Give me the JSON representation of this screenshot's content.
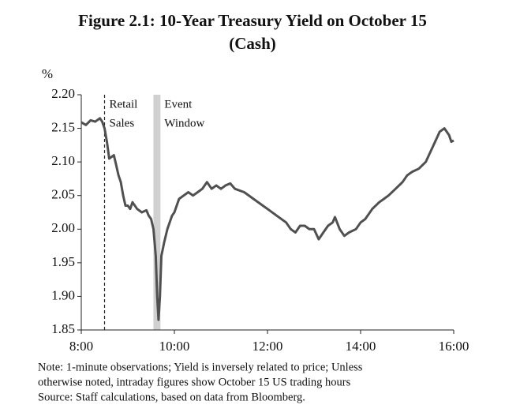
{
  "chart_data": {
    "type": "line",
    "title": [
      "Figure 2.1: 10-Year Treasury Yield on October 15",
      "(Cash)"
    ],
    "ylabel": "%",
    "color": "#505050",
    "xlim": [
      8,
      16
    ],
    "xticks": [
      {
        "value": 8,
        "label": "8:00"
      },
      {
        "value": 10,
        "label": "10:00"
      },
      {
        "value": 12,
        "label": "12:00"
      },
      {
        "value": 14,
        "label": "14:00"
      },
      {
        "value": 16,
        "label": "16:00"
      }
    ],
    "ylim": [
      1.85,
      2.2
    ],
    "yticks": [
      1.85,
      {
        "value": 1.9,
        "label": "1.90"
      },
      1.95,
      {
        "value": 2.0,
        "label": "2.00"
      },
      2.05,
      {
        "value": 2.1,
        "label": "2.10"
      },
      2.15,
      {
        "value": 2.2,
        "label": "2.20"
      }
    ],
    "event_line_x": 8.5,
    "event_window_x": [
      9.55,
      9.7
    ],
    "annotations": [
      [
        "Retail",
        "Sales"
      ],
      [
        "Event",
        "Window"
      ]
    ],
    "x": [
      8,
      8.1,
      8.2,
      8.3,
      8.4,
      8.45,
      8.5,
      8.55,
      8.6,
      8.7,
      8.75,
      8.8,
      8.85,
      8.9,
      8.95,
      9.0,
      9.05,
      9.1,
      9.2,
      9.3,
      9.4,
      9.45,
      9.5,
      9.55,
      9.6,
      9.63,
      9.66,
      9.69,
      9.72,
      9.78,
      9.85,
      9.95,
      10.0,
      10.1,
      10.2,
      10.3,
      10.4,
      10.5,
      10.6,
      10.7,
      10.8,
      10.9,
      11.0,
      11.1,
      11.2,
      11.3,
      11.5,
      11.7,
      11.9,
      12.0,
      12.2,
      12.4,
      12.5,
      12.6,
      12.7,
      12.8,
      12.9,
      13.0,
      13.1,
      13.2,
      13.3,
      13.4,
      13.45,
      13.55,
      13.65,
      13.75,
      13.9,
      14.0,
      14.1,
      14.25,
      14.4,
      14.5,
      14.6,
      14.75,
      14.9,
      15.0,
      15.1,
      15.25,
      15.4,
      15.5,
      15.6,
      15.7,
      15.8,
      15.9,
      15.95,
      16.0
    ],
    "values": [
      2.159,
      2.155,
      2.162,
      2.16,
      2.165,
      2.16,
      2.15,
      2.13,
      2.105,
      2.11,
      2.095,
      2.08,
      2.07,
      2.05,
      2.035,
      2.035,
      2.03,
      2.04,
      2.03,
      2.025,
      2.028,
      2.02,
      2.015,
      2.0,
      1.96,
      1.9,
      1.865,
      1.9,
      1.96,
      1.98,
      2.0,
      2.02,
      2.025,
      2.045,
      2.05,
      2.055,
      2.05,
      2.055,
      2.06,
      2.07,
      2.06,
      2.065,
      2.06,
      2.065,
      2.068,
      2.06,
      2.055,
      2.045,
      2.035,
      2.03,
      2.02,
      2.01,
      2.0,
      1.995,
      2.005,
      2.005,
      2.0,
      2.0,
      1.985,
      1.995,
      2.005,
      2.01,
      2.018,
      2.0,
      1.99,
      1.995,
      2.0,
      2.01,
      2.015,
      2.03,
      2.04,
      2.045,
      2.05,
      2.06,
      2.07,
      2.08,
      2.085,
      2.09,
      2.1,
      2.115,
      2.13,
      2.145,
      2.15,
      2.14,
      2.13,
      2.132
    ],
    "notes": [
      "Note: 1-minute observations; Yield is inversely related to price; Unless",
      "otherwise noted, intraday figures show October 15 US trading hours",
      "Source: Staff calculations, based on data from Bloomberg."
    ]
  }
}
